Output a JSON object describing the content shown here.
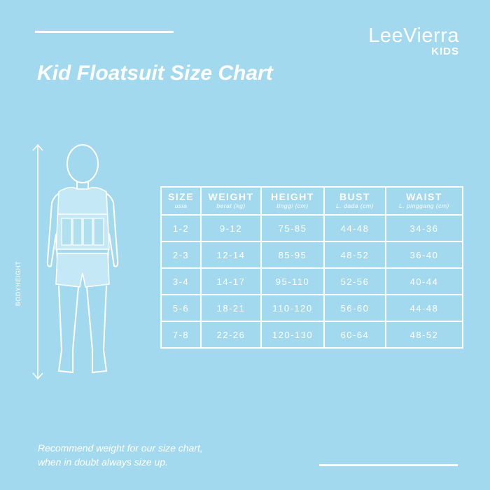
{
  "brand": {
    "name": "LeeVierra",
    "sub": "KIDS"
  },
  "title": "Kid Floatsuit Size Chart",
  "figure": {
    "height_label": "BODYHEIGHT"
  },
  "size_table": {
    "headers": [
      {
        "label": "SIZE",
        "sub": "usia"
      },
      {
        "label": "WEIGHT",
        "sub": "berat (kg)"
      },
      {
        "label": "HEIGHT",
        "sub": "tinggi (cm)"
      },
      {
        "label": "BUST",
        "sub": "L. dada (cm)"
      },
      {
        "label": "WAIST",
        "sub": "L. pinggang (cm)"
      }
    ],
    "rows": [
      [
        "1-2",
        "9-12",
        "75-85",
        "44-48",
        "34-36"
      ],
      [
        "2-3",
        "12-14",
        "85-95",
        "48-52",
        "36-40"
      ],
      [
        "3-4",
        "14-17",
        "95-110",
        "52-56",
        "40-44"
      ],
      [
        "5-6",
        "18-21",
        "110-120",
        "56-60",
        "44-48"
      ],
      [
        "7-8",
        "22-26",
        "120-130",
        "60-64",
        "48-52"
      ]
    ]
  },
  "note": {
    "line1": "Recommend weight for our size chart,",
    "line2": "when in doubt always size up."
  },
  "colors": {
    "background": "#a3d9ee",
    "foreground": "#ffffff",
    "suit": "#c4e8f5",
    "suit_panel": "#b0dff0"
  }
}
